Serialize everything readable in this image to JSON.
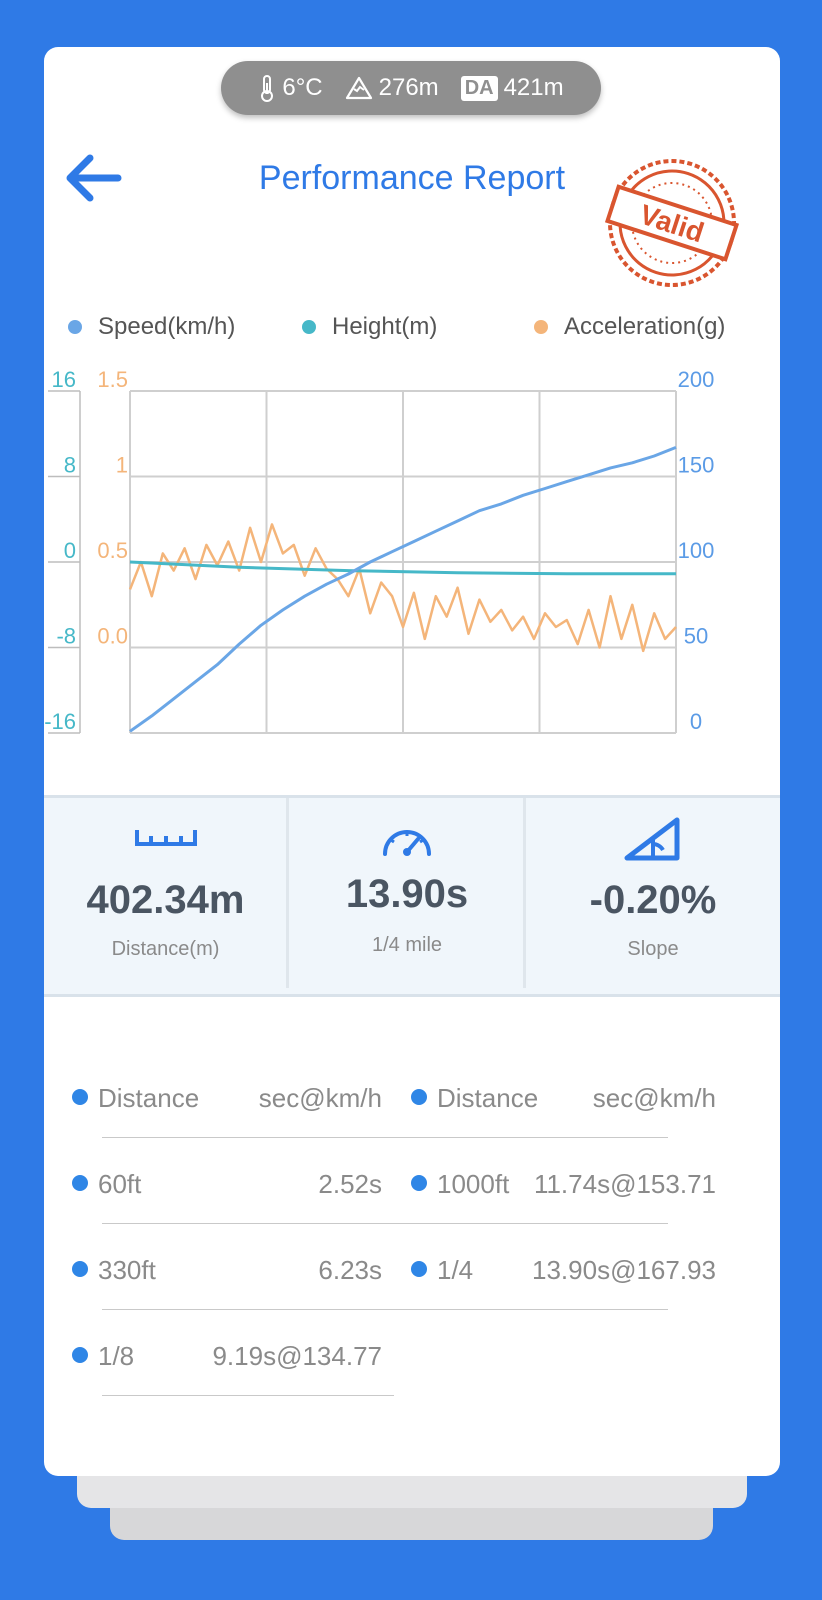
{
  "env": {
    "temperature": "6°C",
    "altitude": "276m",
    "da_label": "DA",
    "density_altitude": "421m"
  },
  "header": {
    "title": "Performance Report",
    "stamp_text": "Valid"
  },
  "legend": [
    "Speed(km/h)",
    "Height(m)",
    "Acceleration(g)"
  ],
  "colors": {
    "speed": "#6aa6e6",
    "height": "#46b8c8",
    "acceleration": "#f4b57a",
    "accent": "#2f7ae6",
    "stamp": "#d9552f"
  },
  "chart_data": {
    "type": "line",
    "axes": {
      "height_ticks": [
        "16",
        "8",
        "0",
        "-8",
        "-16"
      ],
      "accel_ticks": [
        "1.5",
        "1",
        "0.5",
        "0.0"
      ],
      "speed_ticks": [
        "200",
        "150",
        "100",
        "50",
        "0"
      ],
      "height_range": [
        -16,
        16
      ],
      "accel_range": [
        -0.5,
        1.5
      ],
      "speed_range": [
        0,
        200
      ]
    },
    "series": [
      {
        "name": "Speed(km/h)",
        "axis": "speed",
        "x": [
          0,
          0.04,
          0.08,
          0.12,
          0.16,
          0.2,
          0.24,
          0.28,
          0.32,
          0.36,
          0.4,
          0.44,
          0.48,
          0.52,
          0.56,
          0.6,
          0.64,
          0.68,
          0.72,
          0.76,
          0.8,
          0.84,
          0.88,
          0.92,
          0.96,
          1.0
        ],
        "values": [
          1,
          10,
          20,
          30,
          40,
          52,
          63,
          72,
          80,
          87,
          93,
          100,
          106,
          112,
          118,
          124,
          130,
          134,
          139,
          143,
          147,
          151,
          155,
          158,
          162,
          167
        ]
      },
      {
        "name": "Height(m)",
        "axis": "height",
        "x": [
          0,
          0.2,
          0.4,
          0.6,
          0.8,
          1.0
        ],
        "values": [
          0,
          -0.5,
          -0.8,
          -1.0,
          -1.1,
          -1.1
        ]
      },
      {
        "name": "Acceleration(g)",
        "axis": "accel",
        "x": [
          0,
          0.02,
          0.04,
          0.06,
          0.08,
          0.1,
          0.12,
          0.14,
          0.16,
          0.18,
          0.2,
          0.22,
          0.24,
          0.26,
          0.28,
          0.3,
          0.32,
          0.34,
          0.36,
          0.38,
          0.4,
          0.42,
          0.44,
          0.46,
          0.48,
          0.5,
          0.52,
          0.54,
          0.56,
          0.58,
          0.6,
          0.62,
          0.64,
          0.66,
          0.68,
          0.7,
          0.72,
          0.74,
          0.76,
          0.78,
          0.8,
          0.82,
          0.84,
          0.86,
          0.88,
          0.9,
          0.92,
          0.94,
          0.96,
          0.98,
          1.0
        ],
        "values": [
          0.34,
          0.5,
          0.3,
          0.55,
          0.45,
          0.58,
          0.4,
          0.6,
          0.48,
          0.62,
          0.45,
          0.7,
          0.5,
          0.72,
          0.55,
          0.6,
          0.42,
          0.58,
          0.46,
          0.4,
          0.3,
          0.46,
          0.2,
          0.38,
          0.3,
          0.12,
          0.32,
          0.05,
          0.3,
          0.18,
          0.35,
          0.08,
          0.28,
          0.15,
          0.22,
          0.1,
          0.18,
          0.05,
          0.2,
          0.12,
          0.16,
          0.02,
          0.22,
          0.0,
          0.3,
          0.05,
          0.25,
          -0.02,
          0.2,
          0.05,
          0.12
        ]
      }
    ]
  },
  "stats": [
    {
      "icon": "ruler-icon",
      "value": "402.34m",
      "label": "Distance(m)"
    },
    {
      "icon": "speedometer-icon",
      "value": "13.90s",
      "label": "1/4 mile"
    },
    {
      "icon": "slope-icon",
      "value": "-0.20%",
      "label": "Slope"
    }
  ],
  "results": {
    "header": {
      "left_name": "Distance",
      "left_value": "sec@km/h",
      "right_name": "Distance",
      "right_value": "sec@km/h"
    },
    "rows": [
      {
        "left_name": "60ft",
        "left_value": "2.52s",
        "right_name": "1000ft",
        "right_value": "11.74s@153.71"
      },
      {
        "left_name": "330ft",
        "left_value": "6.23s",
        "right_name": "1/4",
        "right_value": "13.90s@167.93"
      },
      {
        "left_name": "1/8",
        "left_value": "9.19s@134.77"
      }
    ]
  }
}
